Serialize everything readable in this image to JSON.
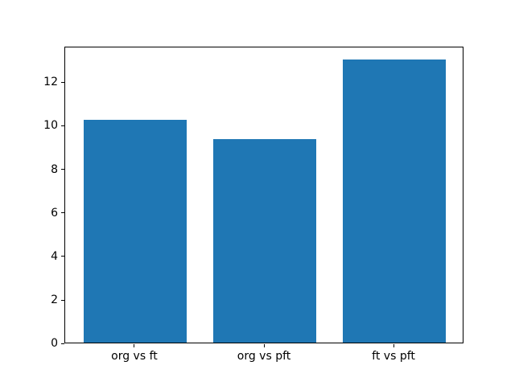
{
  "chart_data": {
    "type": "bar",
    "categories": [
      "org vs ft",
      "org vs pft",
      "ft vs pft"
    ],
    "values": [
      10.25,
      9.35,
      13.0
    ],
    "title": "",
    "xlabel": "",
    "ylabel": "",
    "ylim": [
      0,
      13.65
    ],
    "xlim": [
      -0.54,
      2.54
    ],
    "bar_width": 0.8,
    "yticks": [
      0,
      2,
      4,
      6,
      8,
      10,
      12
    ],
    "grid": false,
    "legend": null,
    "bar_color": "#1f77b4",
    "background_color": "#ffffff",
    "spine_color": "#000000",
    "tick_label_color": "#000000"
  }
}
